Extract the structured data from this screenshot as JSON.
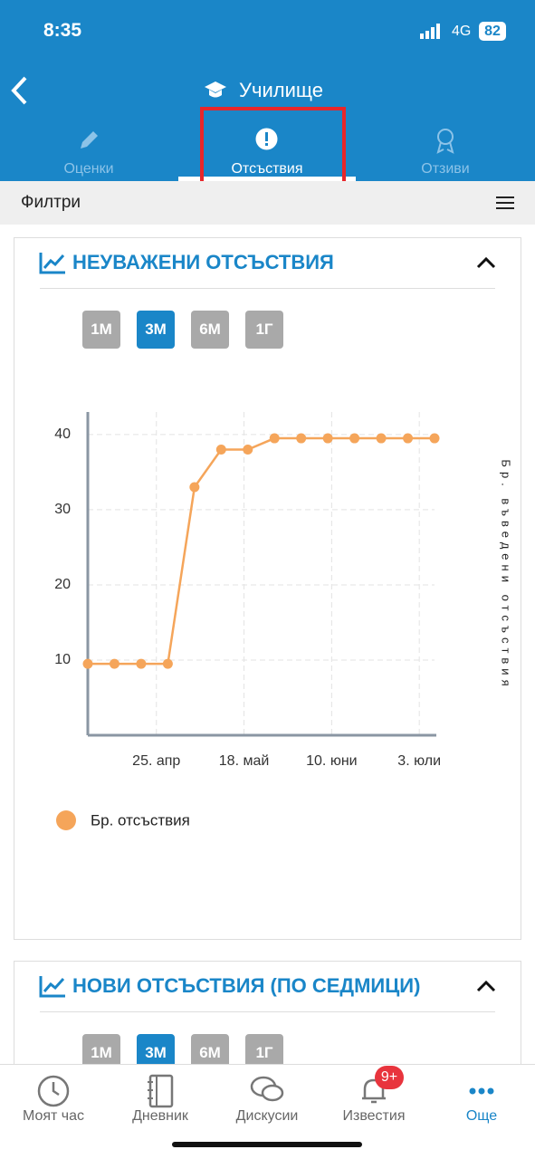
{
  "status_bar": {
    "time": "8:35",
    "network": "4G",
    "battery": "82"
  },
  "header": {
    "title": "Училище"
  },
  "tabs": [
    "Оценки",
    "Отсъствия",
    "Отзиви"
  ],
  "filter_bar": {
    "label": "Филтри"
  },
  "cards": [
    {
      "title": "НЕУВАЖЕНИ ОТСЪСТВИЯ",
      "range_buttons": [
        "1М",
        "3М",
        "6М",
        "1Г"
      ]
    },
    {
      "title": "НОВИ ОТСЪСТВИЯ (ПО СЕДМИЦИ)",
      "range_buttons": [
        "1М",
        "3М",
        "6М",
        "1Г"
      ]
    }
  ],
  "chart_data": {
    "type": "line",
    "ylabel": "Бр. въведени отсъствия",
    "x": [
      "04-07",
      "04-14",
      "04-21",
      "04-28",
      "05-05",
      "05-12",
      "05-19",
      "05-26",
      "06-02",
      "06-09",
      "06-16",
      "06-23",
      "06-30",
      "07-07"
    ],
    "series": [
      {
        "name": "Бр. отсъствия",
        "color": "#f5a55a",
        "values": [
          9.5,
          9.5,
          9.5,
          9.5,
          33,
          38,
          38,
          39.5,
          39.5,
          39.5,
          39.5,
          39.5,
          39.5,
          39.5
        ]
      }
    ],
    "xlim": [
      "04-07",
      "07-07"
    ],
    "xticks": [
      {
        "value": "04-25",
        "label": "25. апр"
      },
      {
        "value": "05-18",
        "label": "18. май"
      },
      {
        "value": "06-10",
        "label": "10. юни"
      },
      {
        "value": "07-03",
        "label": "3. юли"
      }
    ],
    "ylim": [
      0,
      43
    ],
    "yticks": [
      10,
      20,
      30,
      40
    ],
    "grid": true
  },
  "bottom_nav": {
    "items": [
      "Моят час",
      "Дневник",
      "Дискусии",
      "Известия",
      "Още"
    ],
    "badge": "9+"
  }
}
